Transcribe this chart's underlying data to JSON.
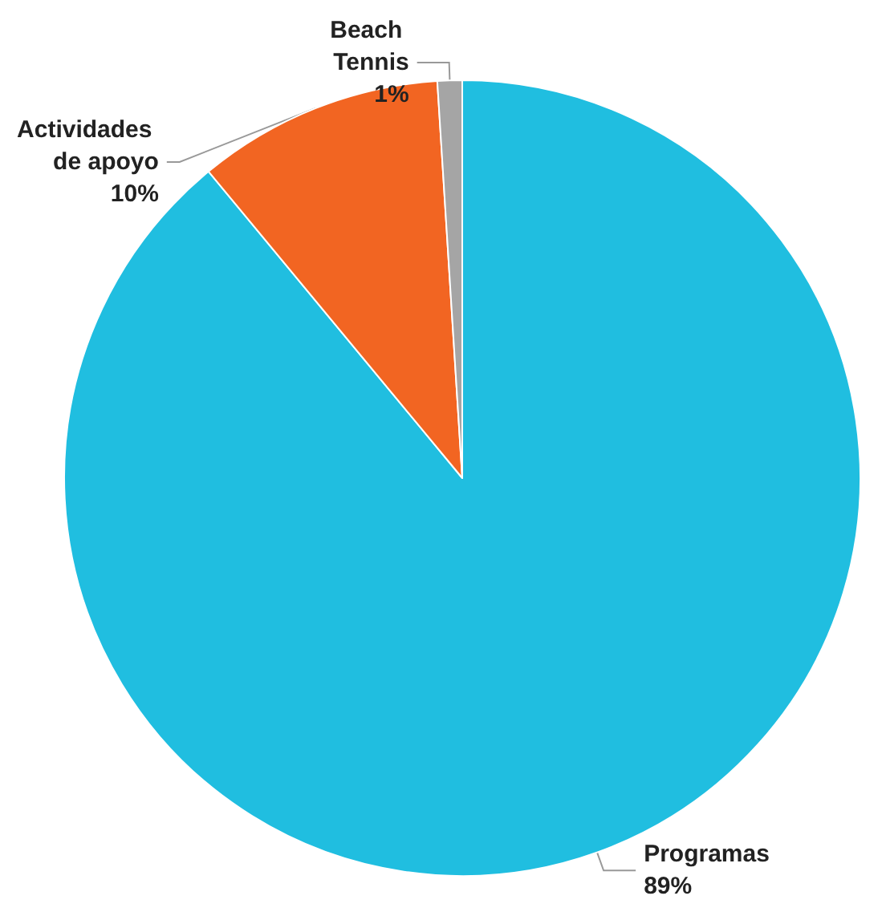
{
  "chart_data": {
    "type": "pie",
    "categories": [
      "Programas",
      "Actividades de apoyo",
      "Beach Tennis"
    ],
    "values": [
      89,
      10,
      1
    ],
    "colors": [
      "#20bee0",
      "#f26522",
      "#a5a5a5"
    ],
    "value_labels": [
      "89%",
      "10%",
      "1%"
    ],
    "legend": false
  }
}
